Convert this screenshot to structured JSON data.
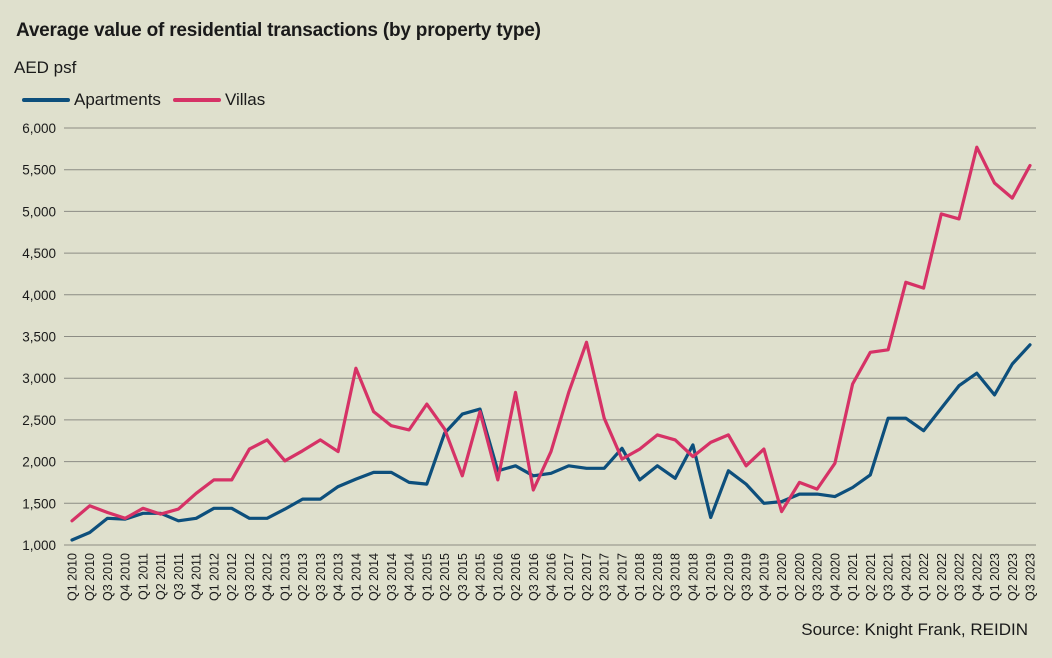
{
  "chart_data": {
    "type": "line",
    "title": "Average value of residential transactions (by property type)",
    "ylabel": "AED psf",
    "xlabel": "",
    "ylim": [
      1000,
      6000
    ],
    "yticks": [
      1000,
      1500,
      2000,
      2500,
      3000,
      3500,
      4000,
      4500,
      5000,
      5500,
      6000
    ],
    "ytick_labels": [
      "1,000",
      "1,500",
      "2,000",
      "2,500",
      "3,000",
      "3,500",
      "4,000",
      "4,500",
      "5,000",
      "5,500",
      "6,000"
    ],
    "grid": true,
    "legend_position": "top-left",
    "categories": [
      "Q1 2010",
      "Q2 2010",
      "Q3 2010",
      "Q4 2010",
      "Q1 2011",
      "Q2 2011",
      "Q3 2011",
      "Q4 2011",
      "Q1 2012",
      "Q2 2012",
      "Q3 2012",
      "Q4 2012",
      "Q1 2013",
      "Q2 2013",
      "Q3 2013",
      "Q4 2013",
      "Q1 2014",
      "Q2 2014",
      "Q3 2014",
      "Q4 2014",
      "Q1 2015",
      "Q2 2015",
      "Q3 2015",
      "Q4 2015",
      "Q1 2016",
      "Q2 2016",
      "Q3 2016",
      "Q4 2016",
      "Q1 2017",
      "Q2 2017",
      "Q3 2017",
      "Q4 2017",
      "Q1 2018",
      "Q2 2018",
      "Q3 2018",
      "Q4 2018",
      "Q1 2019",
      "Q2 2019",
      "Q3 2019",
      "Q4 2019",
      "Q1 2020",
      "Q2 2020",
      "Q3 2020",
      "Q4 2020",
      "Q1 2021",
      "Q2 2021",
      "Q3 2021",
      "Q4 2021",
      "Q1 2022",
      "Q2 2022",
      "Q3 2022",
      "Q4 2022",
      "Q1 2023",
      "Q2 2023",
      "Q3 2023"
    ],
    "series": [
      {
        "name": "Apartments",
        "color": "#0d4f7c",
        "values": [
          1060,
          1150,
          1320,
          1310,
          1380,
          1380,
          1290,
          1320,
          1440,
          1440,
          1320,
          1320,
          1430,
          1550,
          1550,
          1700,
          1790,
          1870,
          1870,
          1750,
          1730,
          2340,
          2570,
          2630,
          1890,
          1950,
          1830,
          1860,
          1950,
          1920,
          1920,
          2160,
          1780,
          1950,
          1800,
          2200,
          1330,
          1890,
          1730,
          1500,
          1520,
          1610,
          1610,
          1580,
          1690,
          1840,
          2520,
          2520,
          2370,
          2640,
          2910,
          3060,
          2800,
          3170,
          3400
        ]
      },
      {
        "name": "Villas",
        "color": "#d63266",
        "values": [
          1290,
          1470,
          1390,
          1320,
          1440,
          1370,
          1430,
          1620,
          1780,
          1780,
          2150,
          2260,
          2010,
          2130,
          2260,
          2120,
          3120,
          2600,
          2430,
          2380,
          2690,
          2390,
          1830,
          2600,
          1780,
          2830,
          1660,
          2120,
          2830,
          3430,
          2520,
          2030,
          2150,
          2320,
          2260,
          2060,
          2230,
          2320,
          1950,
          2150,
          1400,
          1750,
          1670,
          1980,
          2930,
          3310,
          3340,
          4150,
          4080,
          4970,
          4910,
          5770,
          5340,
          5160,
          5550
        ]
      }
    ]
  },
  "source": "Source: Knight Frank, REIDIN"
}
